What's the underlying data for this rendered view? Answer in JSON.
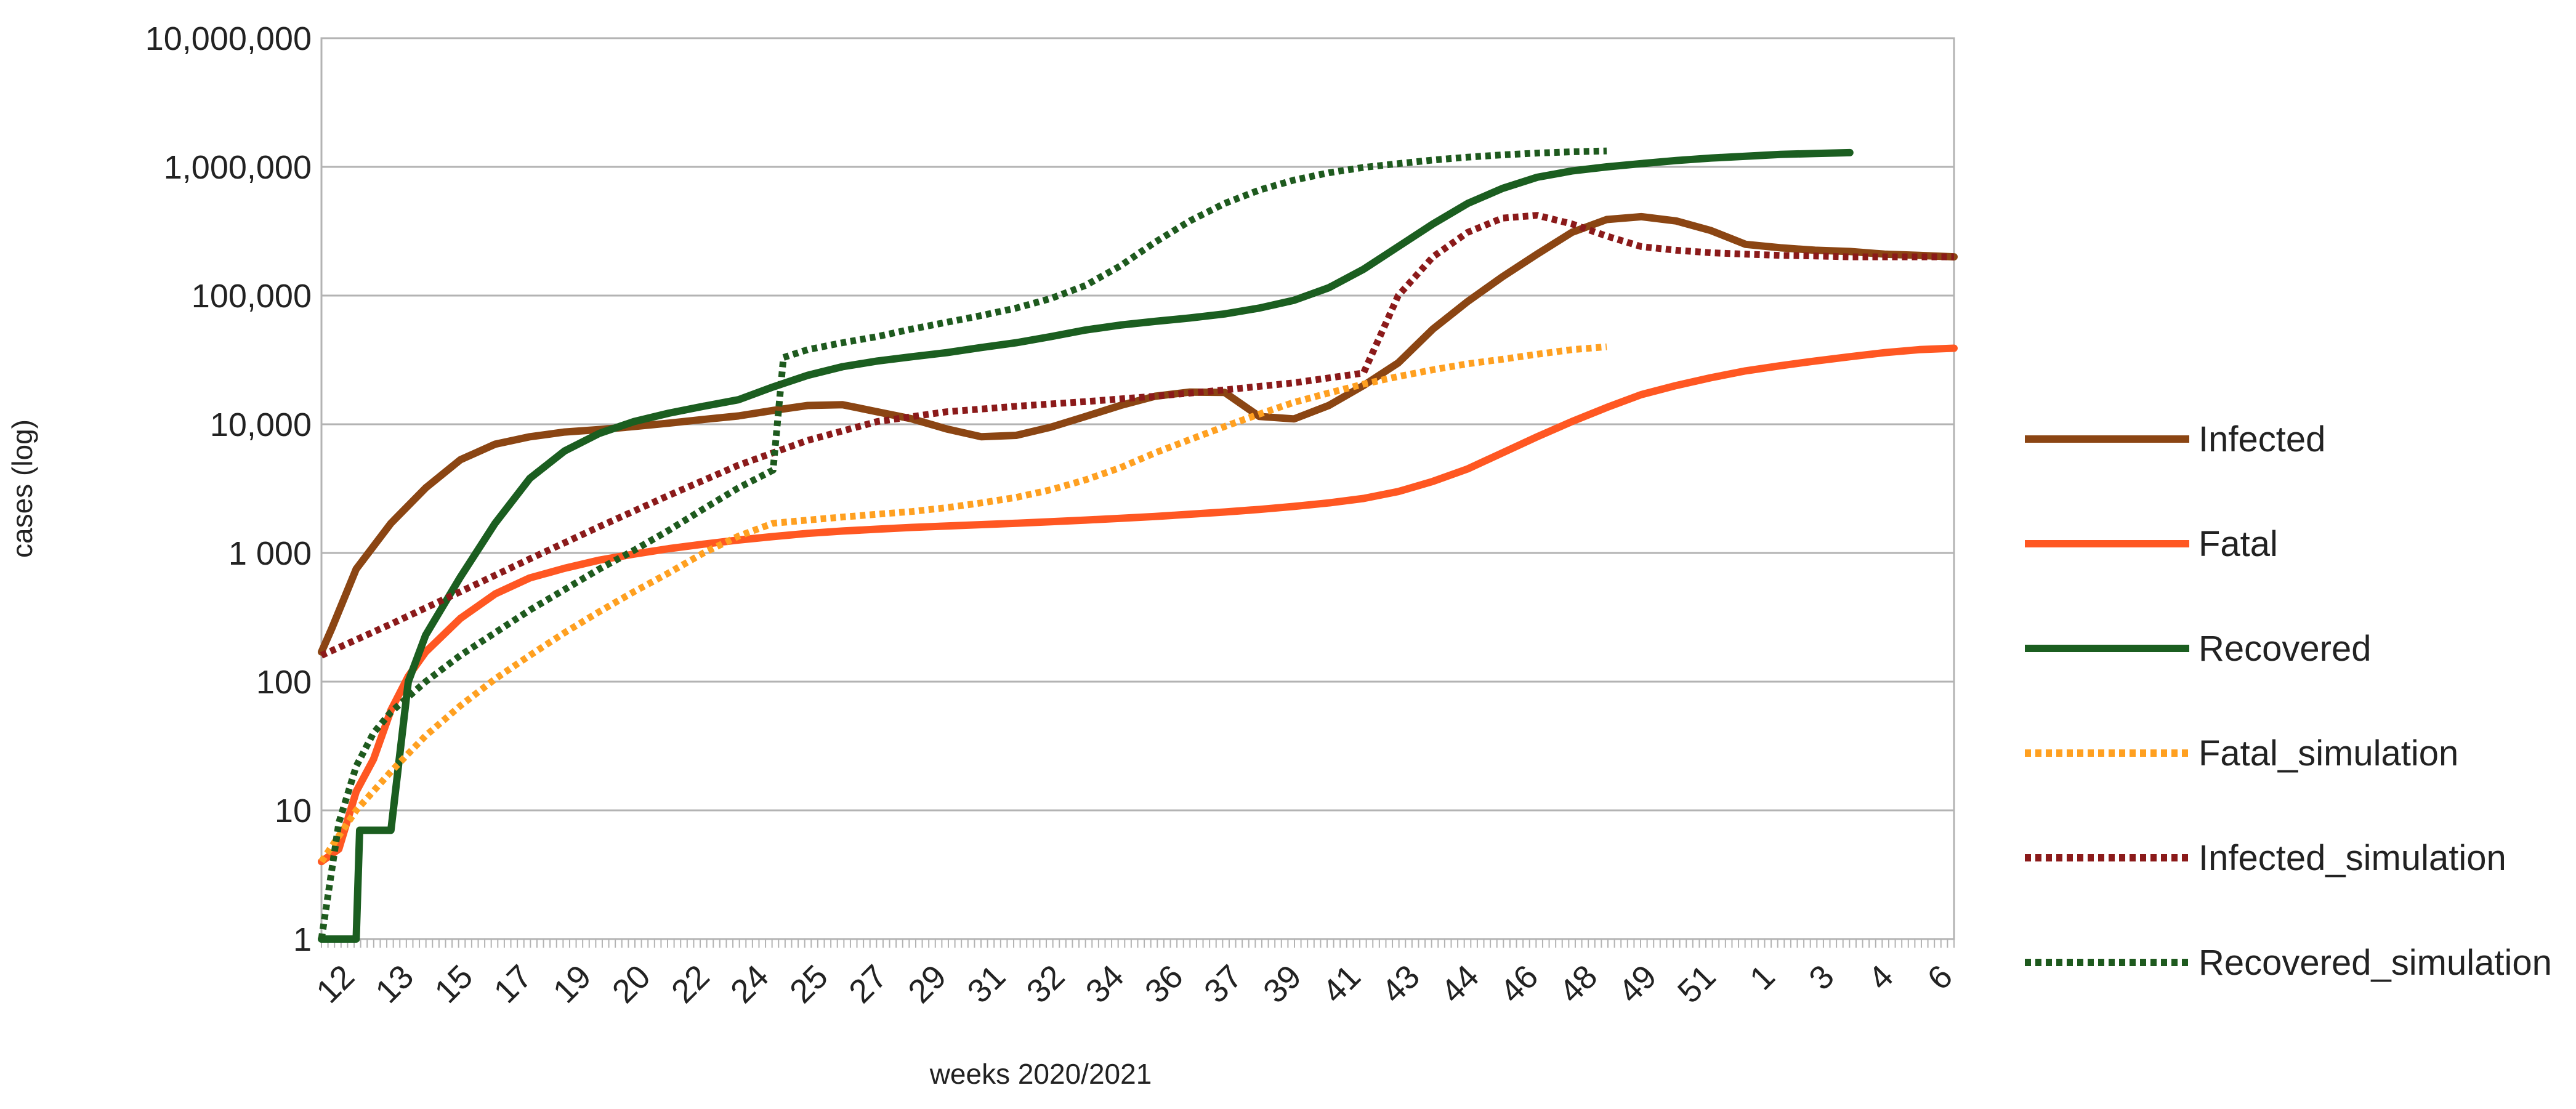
{
  "chart_data": {
    "type": "line",
    "title": "",
    "xlabel": "weeks 2020/2021",
    "ylabel": "cases (log)",
    "yscale": "log",
    "ylim": [
      1,
      10000000
    ],
    "grid": true,
    "legend_position": "right",
    "y_tick_labels": [
      "1",
      "10",
      "100",
      "1 000",
      "10,000",
      "100,000",
      "1,000,000",
      "10,000,000"
    ],
    "x_tick_labels": [
      "12",
      "13",
      "15",
      "17",
      "19",
      "20",
      "22",
      "24",
      "25",
      "27",
      "29",
      "31",
      "32",
      "34",
      "36",
      "37",
      "39",
      "41",
      "43",
      "44",
      "46",
      "48",
      "49",
      "51",
      "1",
      "3",
      "4",
      "6"
    ],
    "x_domain": [
      0,
      47
    ],
    "series": [
      {
        "name": "Infected",
        "color": "#8B4513",
        "style": "solid",
        "points": [
          [
            0,
            170
          ],
          [
            0.3,
            260
          ],
          [
            1,
            750
          ],
          [
            2,
            1700
          ],
          [
            3,
            3200
          ],
          [
            4,
            5300
          ],
          [
            5,
            7000
          ],
          [
            6,
            8000
          ],
          [
            7,
            8700
          ],
          [
            8,
            9100
          ],
          [
            9,
            9600
          ],
          [
            10,
            10200
          ],
          [
            11,
            10900
          ],
          [
            12,
            11600
          ],
          [
            13,
            12800
          ],
          [
            14,
            14000
          ],
          [
            15,
            14200
          ],
          [
            16,
            12500
          ],
          [
            17,
            11000
          ],
          [
            18,
            9200
          ],
          [
            19,
            8000
          ],
          [
            20,
            8200
          ],
          [
            21,
            9500
          ],
          [
            22,
            11500
          ],
          [
            23,
            14000
          ],
          [
            24,
            16500
          ],
          [
            25,
            17800
          ],
          [
            26,
            17700
          ],
          [
            27,
            11500
          ],
          [
            28,
            11000
          ],
          [
            29,
            14000
          ],
          [
            30,
            20000
          ],
          [
            31,
            30000
          ],
          [
            32,
            55000
          ],
          [
            33,
            90000
          ],
          [
            34,
            140000
          ],
          [
            35,
            210000
          ],
          [
            36,
            310000
          ],
          [
            37,
            390000
          ],
          [
            38,
            410000
          ],
          [
            39,
            380000
          ],
          [
            40,
            320000
          ],
          [
            41,
            250000
          ],
          [
            42,
            235000
          ],
          [
            43,
            225000
          ],
          [
            44,
            220000
          ],
          [
            45,
            210000
          ],
          [
            46,
            205000
          ],
          [
            47,
            200000
          ]
        ]
      },
      {
        "name": "Fatal",
        "color": "#FF5722",
        "style": "solid",
        "points": [
          [
            0,
            4
          ],
          [
            0.5,
            5
          ],
          [
            1,
            14
          ],
          [
            1.5,
            25
          ],
          [
            2,
            60
          ],
          [
            2.5,
            110
          ],
          [
            3,
            170
          ],
          [
            4,
            310
          ],
          [
            5,
            480
          ],
          [
            6,
            640
          ],
          [
            7,
            760
          ],
          [
            8,
            880
          ],
          [
            9,
            980
          ],
          [
            10,
            1080
          ],
          [
            11,
            1170
          ],
          [
            12,
            1260
          ],
          [
            13,
            1340
          ],
          [
            14,
            1420
          ],
          [
            15,
            1480
          ],
          [
            16,
            1530
          ],
          [
            17,
            1580
          ],
          [
            18,
            1620
          ],
          [
            19,
            1660
          ],
          [
            20,
            1700
          ],
          [
            21,
            1750
          ],
          [
            22,
            1800
          ],
          [
            23,
            1860
          ],
          [
            24,
            1920
          ],
          [
            25,
            2000
          ],
          [
            26,
            2080
          ],
          [
            27,
            2180
          ],
          [
            28,
            2300
          ],
          [
            29,
            2450
          ],
          [
            30,
            2650
          ],
          [
            31,
            3000
          ],
          [
            32,
            3600
          ],
          [
            33,
            4500
          ],
          [
            34,
            6000
          ],
          [
            35,
            8000
          ],
          [
            36,
            10500
          ],
          [
            37,
            13500
          ],
          [
            38,
            17000
          ],
          [
            39,
            20000
          ],
          [
            40,
            23000
          ],
          [
            41,
            26000
          ],
          [
            42,
            28500
          ],
          [
            43,
            31000
          ],
          [
            44,
            33500
          ],
          [
            45,
            36000
          ],
          [
            46,
            38000
          ],
          [
            47,
            39000
          ]
        ]
      },
      {
        "name": "Recovered",
        "color": "#1B5E20",
        "style": "solid",
        "points": [
          [
            0,
            1
          ],
          [
            1,
            1
          ],
          [
            1.1,
            7
          ],
          [
            2,
            7
          ],
          [
            2.5,
            100
          ],
          [
            3,
            230
          ],
          [
            4,
            650
          ],
          [
            5,
            1700
          ],
          [
            6,
            3800
          ],
          [
            7,
            6200
          ],
          [
            8,
            8500
          ],
          [
            9,
            10500
          ],
          [
            10,
            12200
          ],
          [
            11,
            13800
          ],
          [
            12,
            15500
          ],
          [
            13,
            19500
          ],
          [
            14,
            24000
          ],
          [
            15,
            28000
          ],
          [
            16,
            31000
          ],
          [
            17,
            33500
          ],
          [
            18,
            36000
          ],
          [
            19,
            39500
          ],
          [
            20,
            43000
          ],
          [
            21,
            48000
          ],
          [
            22,
            54000
          ],
          [
            23,
            59000
          ],
          [
            24,
            63000
          ],
          [
            25,
            67000
          ],
          [
            26,
            72000
          ],
          [
            27,
            80000
          ],
          [
            28,
            92000
          ],
          [
            29,
            115000
          ],
          [
            30,
            160000
          ],
          [
            31,
            240000
          ],
          [
            32,
            360000
          ],
          [
            33,
            520000
          ],
          [
            34,
            680000
          ],
          [
            35,
            830000
          ],
          [
            36,
            930000
          ],
          [
            37,
            1000000
          ],
          [
            38,
            1060000
          ],
          [
            39,
            1120000
          ],
          [
            40,
            1170000
          ],
          [
            41,
            1210000
          ],
          [
            42,
            1250000
          ],
          [
            43,
            1270000
          ],
          [
            44,
            1290000
          ]
        ]
      },
      {
        "name": "Fatal_simulation",
        "color": "#FFA020",
        "style": "dotted",
        "points": [
          [
            0,
            4
          ],
          [
            1,
            10
          ],
          [
            2,
            20
          ],
          [
            3,
            38
          ],
          [
            4,
            65
          ],
          [
            5,
            105
          ],
          [
            6,
            160
          ],
          [
            7,
            240
          ],
          [
            8,
            350
          ],
          [
            9,
            500
          ],
          [
            10,
            700
          ],
          [
            11,
            1000
          ],
          [
            12,
            1350
          ],
          [
            13,
            1700
          ],
          [
            14,
            1800
          ],
          [
            15,
            1900
          ],
          [
            16,
            2000
          ],
          [
            17,
            2100
          ],
          [
            18,
            2250
          ],
          [
            19,
            2450
          ],
          [
            20,
            2700
          ],
          [
            21,
            3100
          ],
          [
            22,
            3700
          ],
          [
            23,
            4600
          ],
          [
            24,
            6000
          ],
          [
            25,
            7600
          ],
          [
            26,
            9600
          ],
          [
            27,
            12000
          ],
          [
            28,
            14800
          ],
          [
            29,
            17500
          ],
          [
            30,
            20500
          ],
          [
            31,
            23500
          ],
          [
            32,
            26500
          ],
          [
            33,
            29500
          ],
          [
            34,
            32000
          ],
          [
            35,
            35000
          ],
          [
            36,
            38000
          ],
          [
            37,
            40000
          ]
        ]
      },
      {
        "name": "Infected_simulation",
        "color": "#8B1A1A",
        "style": "dotted",
        "points": [
          [
            0,
            160
          ],
          [
            2,
            280
          ],
          [
            4,
            500
          ],
          [
            6,
            900
          ],
          [
            8,
            1600
          ],
          [
            10,
            2800
          ],
          [
            12,
            4800
          ],
          [
            14,
            7500
          ],
          [
            16,
            10500
          ],
          [
            18,
            12500
          ],
          [
            20,
            13800
          ],
          [
            22,
            15000
          ],
          [
            24,
            16500
          ],
          [
            26,
            18500
          ],
          [
            28,
            21000
          ],
          [
            30,
            25000
          ],
          [
            31,
            100000
          ],
          [
            32,
            200000
          ],
          [
            33,
            310000
          ],
          [
            34,
            400000
          ],
          [
            35,
            420000
          ],
          [
            36,
            360000
          ],
          [
            37,
            290000
          ],
          [
            38,
            240000
          ],
          [
            39,
            225000
          ],
          [
            40,
            215000
          ],
          [
            41,
            210000
          ],
          [
            42,
            205000
          ],
          [
            43,
            203000
          ],
          [
            44,
            200000
          ],
          [
            45,
            200000
          ],
          [
            46,
            200000
          ],
          [
            47,
            200000
          ]
        ]
      },
      {
        "name": "Recovered_simulation",
        "color": "#1E5A1E",
        "style": "dotted",
        "points": [
          [
            0,
            1
          ],
          [
            0.5,
            8
          ],
          [
            1,
            22
          ],
          [
            1.5,
            40
          ],
          [
            2,
            58
          ],
          [
            3,
            100
          ],
          [
            4,
            160
          ],
          [
            5,
            240
          ],
          [
            6,
            360
          ],
          [
            7,
            520
          ],
          [
            8,
            750
          ],
          [
            9,
            1050
          ],
          [
            10,
            1500
          ],
          [
            11,
            2200
          ],
          [
            12,
            3200
          ],
          [
            13,
            4400
          ],
          [
            13.3,
            33000
          ],
          [
            14,
            38000
          ],
          [
            15,
            43000
          ],
          [
            16,
            48000
          ],
          [
            17,
            55000
          ],
          [
            18,
            62000
          ],
          [
            19,
            70000
          ],
          [
            20,
            80000
          ],
          [
            21,
            95000
          ],
          [
            22,
            120000
          ],
          [
            23,
            170000
          ],
          [
            24,
            260000
          ],
          [
            25,
            380000
          ],
          [
            26,
            520000
          ],
          [
            27,
            660000
          ],
          [
            28,
            790000
          ],
          [
            29,
            900000
          ],
          [
            30,
            990000
          ],
          [
            31,
            1060000
          ],
          [
            32,
            1130000
          ],
          [
            33,
            1190000
          ],
          [
            34,
            1240000
          ],
          [
            35,
            1280000
          ],
          [
            36,
            1310000
          ],
          [
            37,
            1330000
          ]
        ]
      }
    ]
  }
}
